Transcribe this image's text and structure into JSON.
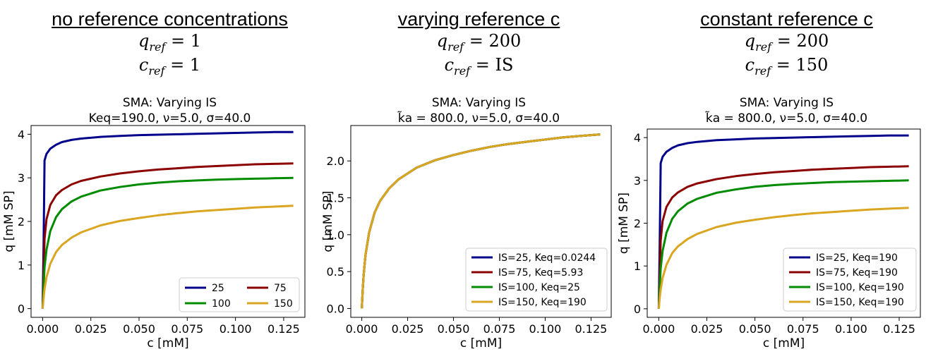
{
  "panels": [
    {
      "heading": "no reference concentrations",
      "q_ref": "q",
      "q_ref_sub": "ref",
      "q_ref_value": "= 1",
      "c_ref": "c",
      "c_ref_sub": "ref",
      "c_ref_value": "= 1",
      "chart_title_line1": "SMA: Varying IS",
      "chart_title_line2": "Keq=190.0, ν=5.0, σ=40.0"
    },
    {
      "heading": "varying reference c",
      "q_ref": "q",
      "q_ref_sub": "ref",
      "q_ref_value": "= 200",
      "c_ref": "c",
      "c_ref_sub": "ref",
      "c_ref_value": "= IS",
      "chart_title_line1": "SMA: Varying IS",
      "chart_title_line2": "k̃a = 800.0, ν=5.0, σ=40.0"
    },
    {
      "heading": "constant reference c",
      "q_ref": "q",
      "q_ref_sub": "ref",
      "q_ref_value": "= 200",
      "c_ref": "c",
      "c_ref_sub": "ref",
      "c_ref_value": "= 150",
      "chart_title_line1": "SMA: Varying IS",
      "chart_title_line2": "k̃a = 800.0, ν=5.0, σ=40.0"
    }
  ],
  "chart_data": [
    {
      "type": "line",
      "title": "SMA: Varying IS\nKeq=190.0, ν=5.0, σ=40.0",
      "xlabel": "c [mM]",
      "ylabel": "q [mM SP]",
      "xlim": [
        -0.006,
        0.136
      ],
      "ylim": [
        -0.2,
        4.2
      ],
      "xticks": [
        "0.000",
        "0.025",
        "0.050",
        "0.075",
        "0.100",
        "0.125"
      ],
      "yticks": [
        "0",
        "1",
        "2",
        "3",
        "4"
      ],
      "legend": "lower-right, 2 columns",
      "x": [
        0,
        0.0005,
        0.001,
        0.002,
        0.004,
        0.007,
        0.01,
        0.015,
        0.02,
        0.03,
        0.04,
        0.05,
        0.06,
        0.07,
        0.08,
        0.09,
        0.1,
        0.11,
        0.12,
        0.13
      ],
      "series": [
        {
          "name": "25",
          "color": "#00008b",
          "values": [
            0,
            1.5,
            3.4,
            3.55,
            3.67,
            3.76,
            3.82,
            3.87,
            3.9,
            3.94,
            3.96,
            3.98,
            3.99,
            4.0,
            4.01,
            4.02,
            4.03,
            4.04,
            4.05,
            4.05
          ]
        },
        {
          "name": "75",
          "color": "#8b0000",
          "values": [
            0,
            0.8,
            1.6,
            2.05,
            2.38,
            2.6,
            2.72,
            2.85,
            2.93,
            3.03,
            3.1,
            3.15,
            3.19,
            3.22,
            3.25,
            3.27,
            3.29,
            3.31,
            3.32,
            3.33
          ]
        },
        {
          "name": "100",
          "color": "#008b00",
          "values": [
            0,
            0.5,
            0.95,
            1.35,
            1.78,
            2.1,
            2.28,
            2.46,
            2.57,
            2.71,
            2.79,
            2.85,
            2.89,
            2.92,
            2.94,
            2.96,
            2.97,
            2.98,
            2.99,
            3.0
          ]
        },
        {
          "name": "150",
          "color": "#daa520",
          "values": [
            0,
            0.25,
            0.45,
            0.72,
            1.03,
            1.3,
            1.46,
            1.63,
            1.75,
            1.91,
            2.01,
            2.08,
            2.14,
            2.19,
            2.23,
            2.26,
            2.29,
            2.32,
            2.34,
            2.36
          ]
        }
      ]
    },
    {
      "type": "line",
      "title": "SMA: Varying IS\nk̃a = 800.0, ν=5.0, σ=40.0",
      "xlabel": "c [mM]",
      "ylabel": "q [mM SP]",
      "xlim": [
        -0.006,
        0.136
      ],
      "ylim": [
        -0.12,
        2.48
      ],
      "xticks": [
        "0.000",
        "0.025",
        "0.050",
        "0.075",
        "0.100",
        "0.125"
      ],
      "yticks": [
        "0.0",
        "0.5",
        "1.0",
        "1.5",
        "2.0"
      ],
      "legend": "lower-right",
      "x": [
        0,
        0.0005,
        0.001,
        0.002,
        0.004,
        0.007,
        0.01,
        0.015,
        0.02,
        0.03,
        0.04,
        0.05,
        0.06,
        0.07,
        0.08,
        0.09,
        0.1,
        0.11,
        0.12,
        0.13
      ],
      "series": [
        {
          "name": "IS=25, Keq=0.0244",
          "color": "#00008b",
          "values": [
            0,
            0.25,
            0.45,
            0.72,
            1.03,
            1.3,
            1.46,
            1.63,
            1.75,
            1.91,
            2.01,
            2.08,
            2.14,
            2.19,
            2.23,
            2.26,
            2.29,
            2.32,
            2.34,
            2.36
          ]
        },
        {
          "name": "IS=75, Keq=5.93",
          "color": "#8b0000",
          "values": [
            0,
            0.25,
            0.45,
            0.72,
            1.03,
            1.3,
            1.46,
            1.63,
            1.75,
            1.91,
            2.01,
            2.08,
            2.14,
            2.19,
            2.23,
            2.26,
            2.29,
            2.32,
            2.34,
            2.36
          ]
        },
        {
          "name": "IS=100, Keq=25",
          "color": "#008b00",
          "values": [
            0,
            0.25,
            0.45,
            0.72,
            1.03,
            1.3,
            1.46,
            1.63,
            1.75,
            1.91,
            2.01,
            2.08,
            2.14,
            2.19,
            2.23,
            2.26,
            2.29,
            2.32,
            2.34,
            2.36
          ]
        },
        {
          "name": "IS=150, Keq=190",
          "color": "#daa520",
          "values": [
            0,
            0.25,
            0.45,
            0.72,
            1.03,
            1.3,
            1.46,
            1.63,
            1.75,
            1.91,
            2.01,
            2.08,
            2.14,
            2.19,
            2.23,
            2.26,
            2.29,
            2.32,
            2.34,
            2.36
          ]
        }
      ]
    },
    {
      "type": "line",
      "title": "SMA: Varying IS\nk̃a = 800.0, ν=5.0, σ=40.0",
      "xlabel": "c [mM]",
      "ylabel": "q [mM SP]",
      "xlim": [
        -0.006,
        0.136
      ],
      "ylim": [
        -0.2,
        4.2
      ],
      "xticks": [
        "0.000",
        "0.025",
        "0.050",
        "0.075",
        "0.100",
        "0.125"
      ],
      "yticks": [
        "0",
        "1",
        "2",
        "3",
        "4"
      ],
      "legend": "lower-right",
      "x": [
        0,
        0.0005,
        0.001,
        0.002,
        0.004,
        0.007,
        0.01,
        0.015,
        0.02,
        0.03,
        0.04,
        0.05,
        0.06,
        0.07,
        0.08,
        0.09,
        0.1,
        0.11,
        0.12,
        0.13
      ],
      "series": [
        {
          "name": "IS=25, Keq=190",
          "color": "#00008b",
          "values": [
            0,
            1.5,
            3.4,
            3.55,
            3.67,
            3.76,
            3.82,
            3.87,
            3.9,
            3.94,
            3.96,
            3.98,
            3.99,
            4.0,
            4.01,
            4.02,
            4.03,
            4.04,
            4.05,
            4.05
          ]
        },
        {
          "name": "IS=75, Keq=190",
          "color": "#8b0000",
          "values": [
            0,
            0.8,
            1.6,
            2.05,
            2.38,
            2.6,
            2.72,
            2.85,
            2.93,
            3.03,
            3.1,
            3.15,
            3.19,
            3.22,
            3.25,
            3.27,
            3.29,
            3.31,
            3.32,
            3.33
          ]
        },
        {
          "name": "IS=100, Keq=190",
          "color": "#008b00",
          "values": [
            0,
            0.5,
            0.95,
            1.35,
            1.78,
            2.1,
            2.28,
            2.46,
            2.57,
            2.71,
            2.79,
            2.85,
            2.89,
            2.92,
            2.94,
            2.96,
            2.97,
            2.98,
            2.99,
            3.0
          ]
        },
        {
          "name": "IS=150, Keq=190",
          "color": "#daa520",
          "values": [
            0,
            0.25,
            0.45,
            0.72,
            1.03,
            1.3,
            1.46,
            1.63,
            1.75,
            1.91,
            2.01,
            2.08,
            2.14,
            2.19,
            2.23,
            2.26,
            2.29,
            2.32,
            2.34,
            2.36
          ]
        }
      ]
    }
  ]
}
